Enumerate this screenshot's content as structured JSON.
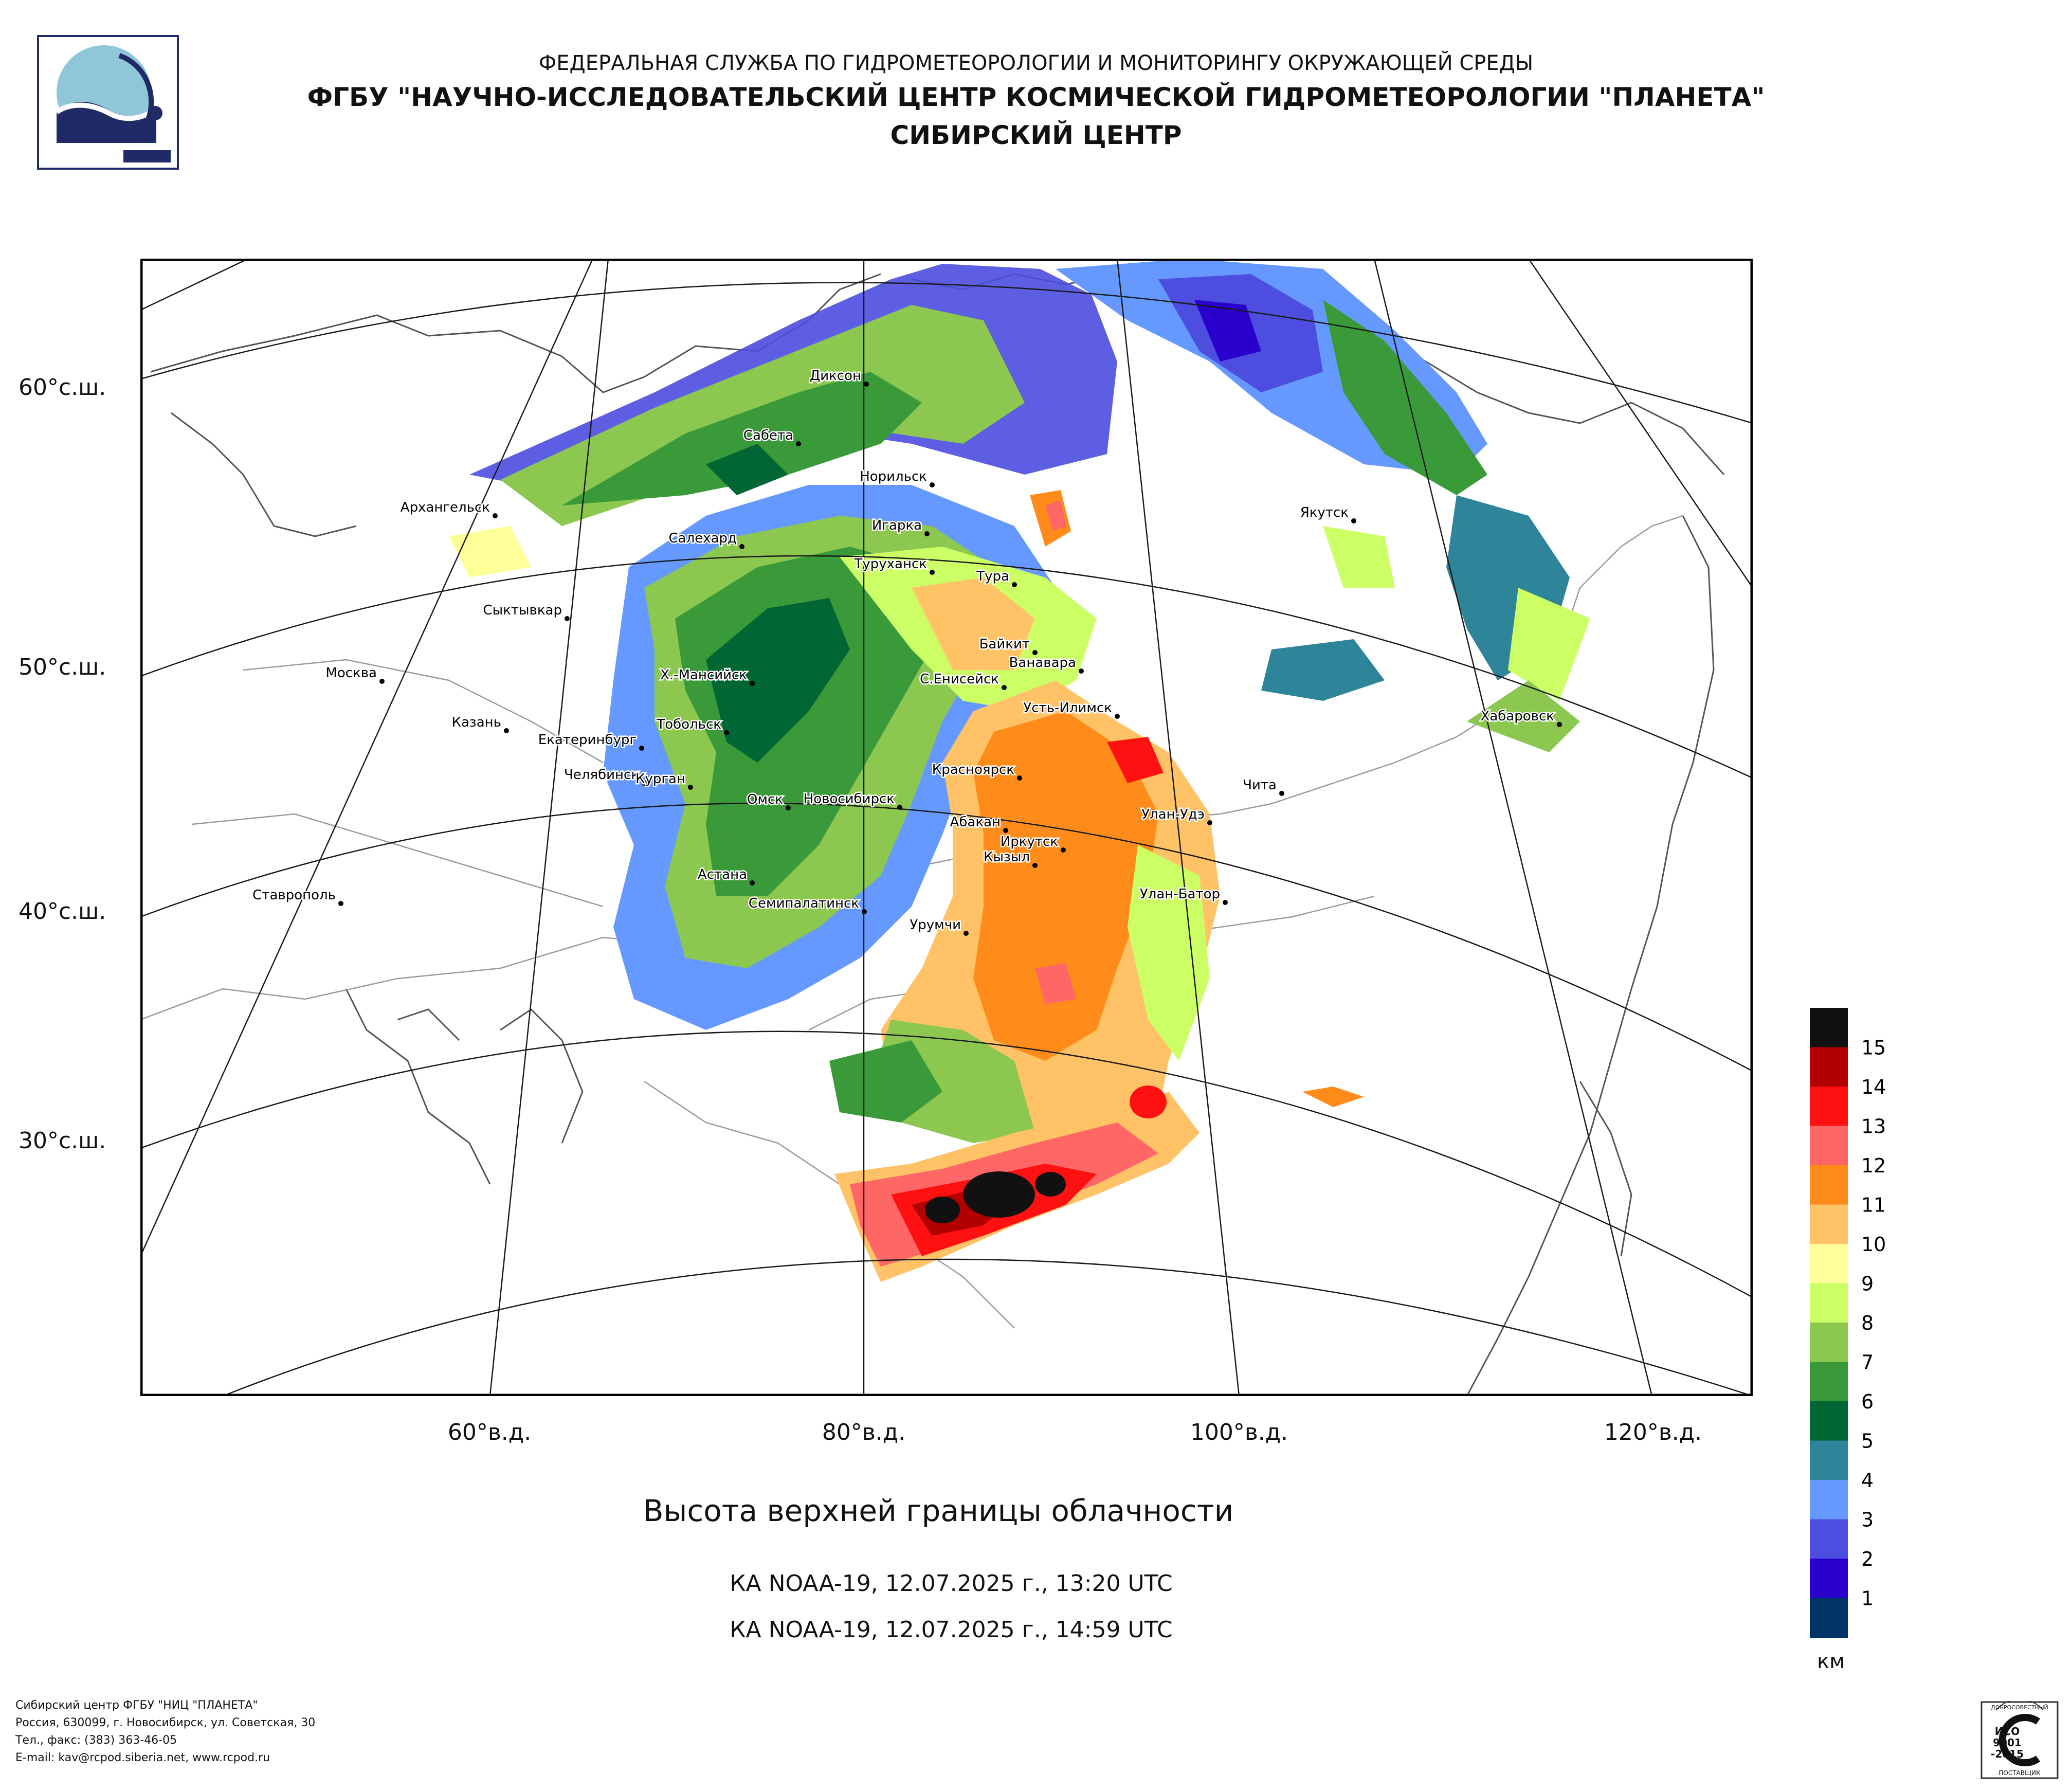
{
  "header": {
    "line1": "ФЕДЕРАЛЬНАЯ СЛУЖБА ПО ГИДРОМЕТЕОРОЛОГИИ И МОНИТОРИНГУ ОКРУЖАЮЩЕЙ СРЕДЫ",
    "line2": "ФГБУ \"НАУЧНО-ИССЛЕДОВАТЕЛЬСКИЙ ЦЕНТР КОСМИЧЕСКОЙ ГИДРОМЕТЕОРОЛОГИИ \"ПЛАНЕТА\"",
    "line3": "СИБИРСКИЙ ЦЕНТР"
  },
  "logo": {
    "icon": "planeta-logo-icon",
    "colors": {
      "navy": "#1f2a66",
      "sky": "#8fc6d8"
    }
  },
  "map": {
    "lat_labels": [
      "60°с.ш.",
      "50°с.ш.",
      "40°с.ш.",
      "30°с.ш."
    ],
    "lon_labels": [
      "60°в.д.",
      "80°в.д.",
      "100°в.д.",
      "120°в.д."
    ],
    "cities": [
      "Диксон",
      "Сабета",
      "Норильск",
      "Архангельск",
      "Якутск",
      "Салехард",
      "Игарка",
      "Туруханск",
      "Тура",
      "Сыктывкар",
      "Байкит",
      "Ванавара",
      "Москва",
      "Х.-Мансийск",
      "С.Енисейск",
      "Усть-Илимск",
      "Хабаровск",
      "Казань",
      "Екатеринбург",
      "Тобольск",
      "Челябинск",
      "Курган",
      "Красноярск",
      "Чита",
      "Омск",
      "Новосибирск",
      "Абакан",
      "Улан-Удэ",
      "Иркутск",
      "Кызыл",
      "Астана",
      "Ставрополь",
      "Семипалатинск",
      "Улан-Батор",
      "Урумчи"
    ]
  },
  "legend": {
    "unit": "км",
    "levels": [
      {
        "label": "15",
        "color": "#111111"
      },
      {
        "label": "14",
        "color": "#b20000"
      },
      {
        "label": "13",
        "color": "#ff1111"
      },
      {
        "label": "12",
        "color": "#ff6666"
      },
      {
        "label": "11",
        "color": "#ff8c1a"
      },
      {
        "label": "10",
        "color": "#ffc266"
      },
      {
        "label": "9",
        "color": "#ffff99"
      },
      {
        "label": "8",
        "color": "#ccff66"
      },
      {
        "label": "7",
        "color": "#8cc850"
      },
      {
        "label": "6",
        "color": "#3a9a3a"
      },
      {
        "label": "5",
        "color": "#006633"
      },
      {
        "label": "4",
        "color": "#2e8499"
      },
      {
        "label": "3",
        "color": "#6699ff"
      },
      {
        "label": "2",
        "color": "#4d4ddf"
      },
      {
        "label": "1",
        "color": "#2a00cc"
      },
      {
        "label": "",
        "color": "#003366"
      }
    ]
  },
  "caption": "Высота верхней границы облачности",
  "satellite": [
    "КА NOAA-19, 12.07.2025 г., 13:20 UTC",
    "КА NOAA-19, 12.07.2025 г., 14:59 UTC"
  ],
  "footer": [
    "Сибирский центр ФГБУ \"НИЦ \"ПЛАНЕТА\"",
    "Россия, 630099, г. Новосибирск, ул. Советская, 30",
    "Тел., факс: (383) 363-46-05",
    "E-mail: kav@rcpod.siberia.net, www.rcpod.ru"
  ],
  "certificate": {
    "icon": "iso-certificate-icon",
    "top": "ДОБРОСОВЕСТНЫЙ",
    "lines": [
      "ИСО",
      "9001",
      "-2015"
    ],
    "bottom": "ПОСТАВЩИК"
  }
}
